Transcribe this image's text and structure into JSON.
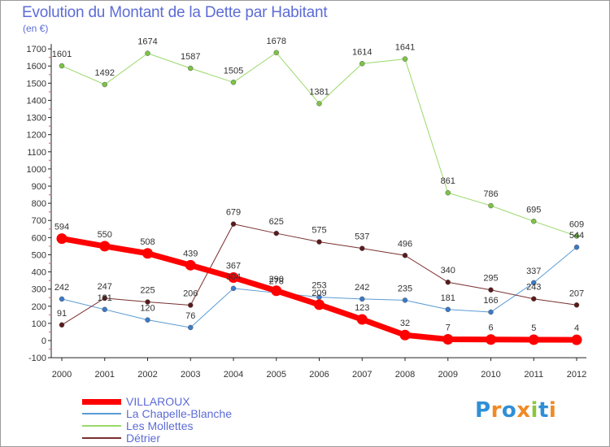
{
  "header": {
    "title": "Evolution du Montant de la Dette par Habitant",
    "subtitle": "(en €)"
  },
  "logo": {
    "text": "Proxiti",
    "letters": [
      {
        "ch": "P",
        "color": "#2f8fd6"
      },
      {
        "ch": "r",
        "color": "#f08a24"
      },
      {
        "ch": "o",
        "color": "#2f8fd6"
      },
      {
        "ch": "x",
        "color": "#f08a24"
      },
      {
        "ch": "i",
        "color": "#8cc63f"
      },
      {
        "ch": "t",
        "color": "#2f8fd6"
      },
      {
        "ch": "i",
        "color": "#f08a24"
      }
    ]
  },
  "chart_data": {
    "type": "line",
    "title": "Evolution du Montant de la Dette par Habitant",
    "ylabel": "(en €)",
    "xlabel": "",
    "x": [
      "2000",
      "2001",
      "2002",
      "2003",
      "2004",
      "2005",
      "2006",
      "2007",
      "2008",
      "2009",
      "2010",
      "2011",
      "2012"
    ],
    "ylim": [
      -100,
      1700
    ],
    "yticks": [
      -100,
      0,
      100,
      200,
      300,
      400,
      500,
      600,
      700,
      800,
      900,
      1000,
      1100,
      1200,
      1300,
      1400,
      1500,
      1600,
      1700
    ],
    "grid": false,
    "legend_position": "bottom-left",
    "series": [
      {
        "name": "La Chapelle-Blanche",
        "color": "#5b9bd5",
        "marker": "#3b7ac8",
        "width": 1,
        "values": [
          242,
          181,
          120,
          76,
          304,
          278,
          253,
          242,
          235,
          181,
          166,
          337,
          544
        ]
      },
      {
        "name": "Les Mollettes",
        "color": "#9ad96a",
        "marker": "#7cc444",
        "width": 1,
        "values": [
          1601,
          1492,
          1674,
          1587,
          1505,
          1678,
          1381,
          1614,
          1641,
          861,
          786,
          695,
          609
        ]
      },
      {
        "name": "Détrier",
        "color": "#7a2f2f",
        "marker": "#5a1a1a",
        "width": 1,
        "values": [
          91,
          247,
          225,
          206,
          679,
          625,
          575,
          537,
          496,
          340,
          295,
          243,
          207
        ]
      },
      {
        "name": "VILLAROUX",
        "color": "#ff0000",
        "marker": "#ff0000",
        "width": 7,
        "values": [
          594,
          550,
          508,
          439,
          367,
          290,
          209,
          123,
          32,
          7,
          6,
          5,
          4
        ]
      }
    ],
    "legend_order": [
      "VILLAROUX",
      "La Chapelle-Blanche",
      "Les Mollettes",
      "Détrier"
    ]
  }
}
